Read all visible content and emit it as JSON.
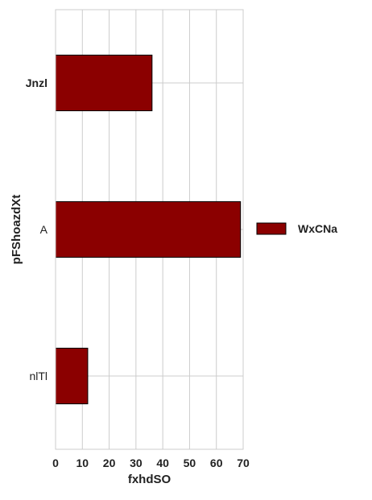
{
  "chart_data": {
    "type": "bar",
    "orientation": "horizontal",
    "categories": [
      "Jnzl",
      "A",
      "nlTl"
    ],
    "series": [
      {
        "name": "WxCNa",
        "values": [
          36,
          69,
          12
        ],
        "color": "#8B0000"
      }
    ],
    "xlabel": "fxhdSO",
    "ylabel": "pFShoazdXt",
    "xlim": [
      0,
      70
    ],
    "xticks": [
      "0",
      "10",
      "20",
      "30",
      "40",
      "50",
      "60",
      "70"
    ],
    "grid": true,
    "legend_position": "right"
  }
}
